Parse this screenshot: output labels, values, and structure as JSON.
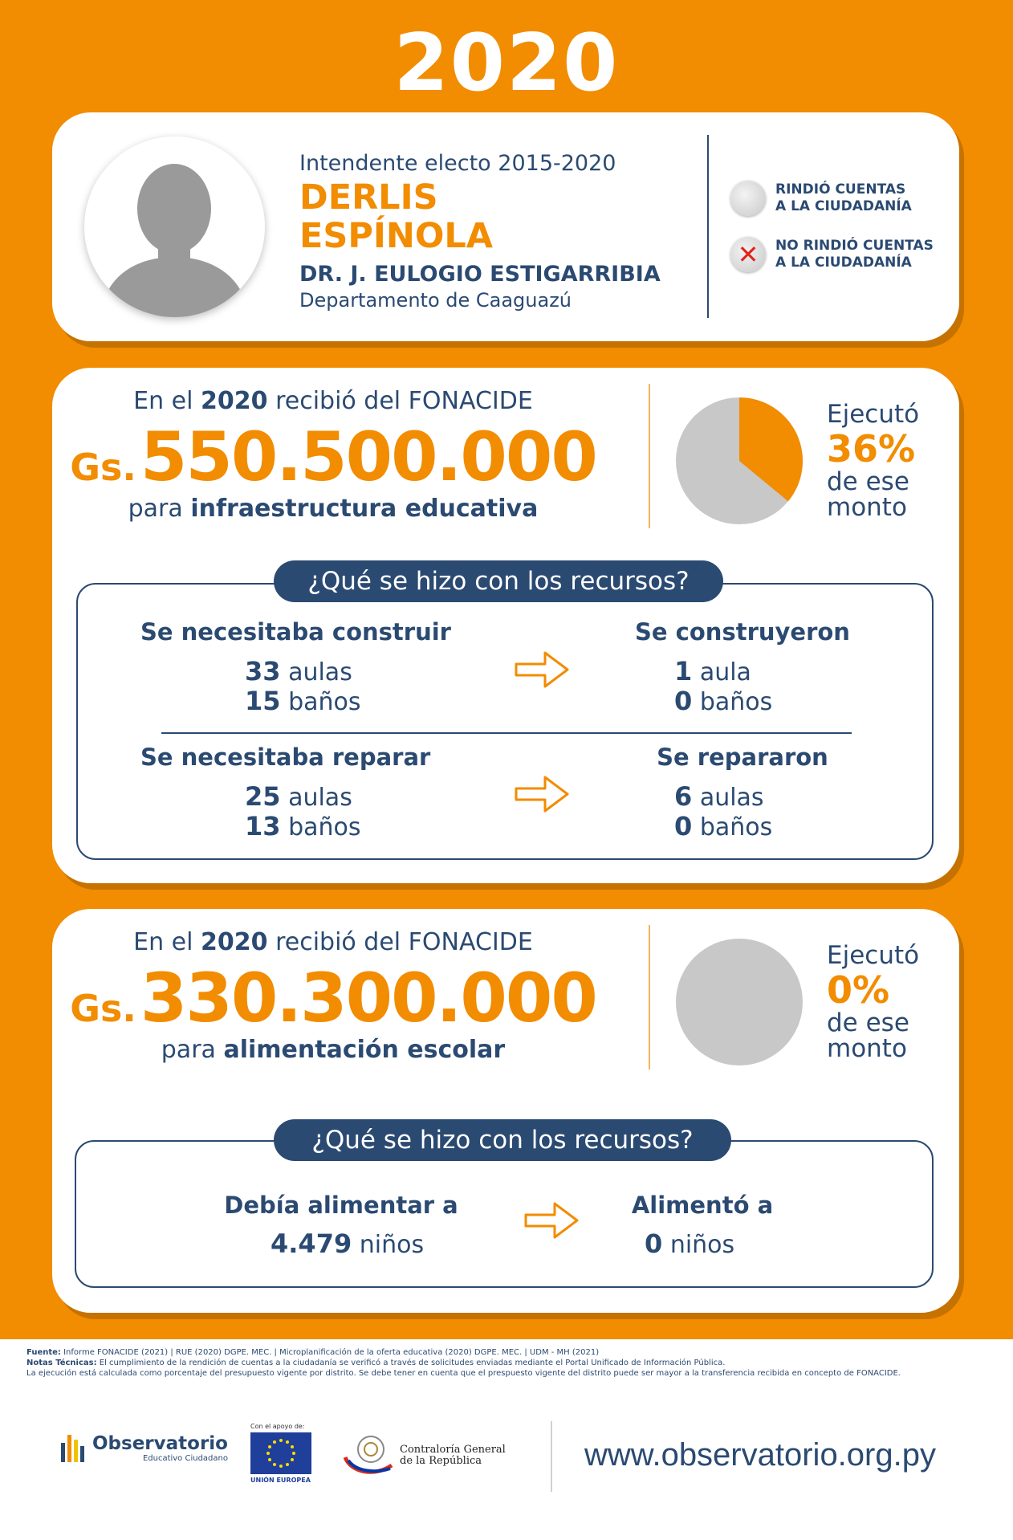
{
  "year": "2020",
  "header": {
    "role": "Intendente electo 2015-2020",
    "name_line1": "DERLIS",
    "name_line2": "ESPÍNOLA",
    "municipality": "DR. J. EULOGIO ESTIGARRIBIA",
    "department": "Departamento de Caaguazú",
    "legend": [
      {
        "icon": "grey-circle-icon",
        "line1": "RINDIÓ CUENTAS",
        "line2": "A LA CIUDADANÍA"
      },
      {
        "icon": "red-x-icon",
        "line1": "NO RINDIÓ CUENTAS",
        "line2": "A LA CIUDADANÍA"
      }
    ]
  },
  "infra": {
    "received_prefix": "En el",
    "received_year": "2020",
    "received_suffix": "recibió del FONACIDE",
    "currency": "Gs.",
    "amount": "550.500.000",
    "purpose_prefix": "para",
    "purpose": "infraestructura educativa",
    "executed_label": "Ejecutó",
    "executed_pct": "36%",
    "executed_value": 36,
    "executed_tail_1": "de ese",
    "executed_tail_2": "monto",
    "question": "¿Qué se hizo con los recursos?",
    "build_needed_title": "Se necesitaba construir",
    "build_needed": [
      {
        "n": "33",
        "unit": "aulas"
      },
      {
        "n": "15",
        "unit": "baños"
      }
    ],
    "built_title": "Se construyeron",
    "built": [
      {
        "n": "1",
        "unit": "aula"
      },
      {
        "n": "0",
        "unit": "baños"
      }
    ],
    "repair_needed_title": "Se necesitaba reparar",
    "repair_needed": [
      {
        "n": "25",
        "unit": "aulas"
      },
      {
        "n": "13",
        "unit": "baños"
      }
    ],
    "repaired_title": "Se repararon",
    "repaired": [
      {
        "n": "6",
        "unit": "aulas"
      },
      {
        "n": "0",
        "unit": "baños"
      }
    ]
  },
  "food": {
    "received_prefix": "En el",
    "received_year": "2020",
    "received_suffix": "recibió del FONACIDE",
    "currency": "Gs.",
    "amount": "330.300.000",
    "purpose_prefix": "para",
    "purpose": "alimentación escolar",
    "executed_label": "Ejecutó",
    "executed_pct": "0%",
    "executed_value": 0,
    "executed_tail_1": "de ese",
    "executed_tail_2": "monto",
    "question": "¿Qué se hizo con los recursos?",
    "should_feed_title": "Debía alimentar a",
    "should_feed": {
      "n": "4.479",
      "unit": "niños"
    },
    "fed_title": "Alimentó a",
    "fed": {
      "n": "0",
      "unit": "niños"
    }
  },
  "footer": {
    "source_label": "Fuente:",
    "source_text": "Informe FONACIDE (2021) | RUE (2020) DGPE. MEC. | Microplanificación de la oferta educativa (2020) DGPE. MEC. | UDM - MH (2021)",
    "notes_label": "Notas Técnicas:",
    "notes_text": "El cumplimiento de la rendición de cuentas a la ciudadanía se verificó a través de solicitudes enviadas mediante el Portal Unificado de Información Pública.",
    "notes_text_2": "La ejecución está calculada como porcentaje del presupuesto vigente por distrito. Se debe tener en cuenta que el prespuesto vigente del distrito puede ser mayor a la transferencia recibida en concepto de FONACIDE.",
    "obs_title": "Observatorio",
    "obs_sub": "Educativo Ciudadano",
    "eu_caption": "Con el apoyo de:",
    "eu_label": "UNIÓN EUROPEA",
    "cgr_line1": "Contraloría General",
    "cgr_line2": "de la República",
    "url": "www.observatorio.org.py"
  },
  "colors": {
    "orange": "#F28C00",
    "navy": "#2B4A72",
    "grey": "#C8C8C8",
    "red": "#E1251B"
  }
}
